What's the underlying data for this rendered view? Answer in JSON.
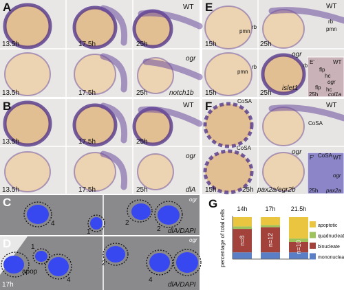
{
  "panel_a": {
    "letter": "A",
    "wt": "WT",
    "ogr": "ogr",
    "gene": "notch1b",
    "times": [
      "13.5h",
      "17.5h",
      "25h",
      "13.5h",
      "17.5h",
      "25h"
    ]
  },
  "panel_b": {
    "letter": "B",
    "wt": "WT",
    "ogr": "ogr",
    "gene": "dlA",
    "times": [
      "13.5h",
      "17.5h",
      "25h",
      "13.5h",
      "17.5h",
      "25h"
    ]
  },
  "panel_c": {
    "letter": "C",
    "ogr": "ogr",
    "cells": [
      "4",
      "1",
      "2",
      "2"
    ],
    "stain": "dlA/DAPI"
  },
  "panel_d": {
    "letter": "D",
    "ogr": "ogr",
    "cells": [
      "1",
      "apop",
      "2",
      "4",
      "4"
    ],
    "time": "17h",
    "stain": "dlA/DAPI"
  },
  "panel_e": {
    "letter": "E",
    "wt": "WT",
    "ogr": "ogr",
    "gene": "islet1",
    "times": [
      "15h",
      "25h",
      "15h",
      "25h"
    ],
    "structures": [
      "pmn",
      "rb",
      "rb",
      "pmn",
      "pmn",
      "rb",
      "rb"
    ],
    "inset": {
      "letter": "E'",
      "wt": "WT",
      "ogr": "ogr",
      "structures": [
        "flp",
        "hc",
        "flp",
        "hc"
      ],
      "time": "25h",
      "gene": "col1a"
    }
  },
  "panel_f": {
    "letter": "F",
    "wt": "WT",
    "ogr": "ogr",
    "gene": "pax2a/egr2b",
    "times": [
      "15h",
      "25h"
    ],
    "structures": [
      "CoSA",
      "CoSA",
      "CoSA",
      "CoSA"
    ],
    "inset": {
      "letter": "F'",
      "wt": "WT",
      "ogr": "ogr",
      "time": "25h",
      "gene": "pax2a"
    }
  },
  "chart_data": {
    "type": "bar",
    "stacked": true,
    "letter": "G",
    "ylabel": "percentage of total cells",
    "categories": [
      "14h",
      "17h",
      "21.5h"
    ],
    "bar_labels": [
      "n=8",
      "n=12",
      "n=10"
    ],
    "ylim": [
      0,
      100
    ],
    "series": [
      {
        "name": "mononucleate",
        "color": "#5b7fc7",
        "values": [
          16,
          16,
          16
        ]
      },
      {
        "name": "binucleate",
        "color": "#a2423b",
        "values": [
          56,
          60,
          25
        ]
      },
      {
        "name": "quadnucleate",
        "color": "#9fc35c",
        "values": [
          6,
          5,
          8
        ]
      },
      {
        "name": "apoptotic",
        "color": "#eac53f",
        "values": [
          22,
          19,
          51
        ]
      }
    ]
  }
}
